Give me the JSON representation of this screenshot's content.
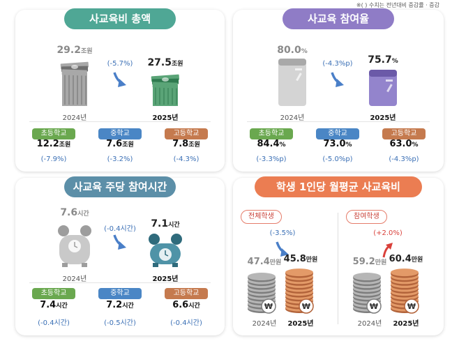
{
  "note": "※(   ) 수치는 전년대비 증감률 · 증감",
  "currency_symbol": "₩",
  "panels": [
    {
      "title": "사교육비 총액",
      "before": {
        "value": "29.2",
        "unit": "조원",
        "year": "2024년"
      },
      "change": "(-5.7%)",
      "after": {
        "value": "27.5",
        "unit": "조원",
        "year": "2025년"
      },
      "levels": [
        {
          "name": "초등학교",
          "value": "12.2",
          "unit": "조원",
          "change": "(-7.9%)"
        },
        {
          "name": "중학교",
          "value": "7.6",
          "unit": "조원",
          "change": "(-3.2%)"
        },
        {
          "name": "고등학교",
          "value": "7.8",
          "unit": "조원",
          "change": "(-4.3%)"
        }
      ]
    },
    {
      "title": "사교육 참여율",
      "before": {
        "value": "80.0",
        "unit": "%",
        "year": "2024년"
      },
      "change": "(-4.3%p)",
      "after": {
        "value": "75.7",
        "unit": "%",
        "year": "2025년"
      },
      "levels": [
        {
          "name": "초등학교",
          "value": "84.4",
          "unit": "%",
          "change": "(-3.3%p)"
        },
        {
          "name": "중학교",
          "value": "73.0",
          "unit": "%",
          "change": "(-5.0%p)"
        },
        {
          "name": "고등학교",
          "value": "63.0",
          "unit": "%",
          "change": "(-4.3%p)"
        }
      ]
    },
    {
      "title": "사교육 주당 참여시간",
      "before": {
        "value": "7.6",
        "unit": "시간",
        "year": "2024년"
      },
      "change": "(-0.4시간)",
      "after": {
        "value": "7.1",
        "unit": "시간",
        "year": "2025년"
      },
      "levels": [
        {
          "name": "초등학교",
          "value": "7.4",
          "unit": "시간",
          "change": "(-0.4시간)"
        },
        {
          "name": "중학교",
          "value": "7.2",
          "unit": "시간",
          "change": "(-0.5시간)"
        },
        {
          "name": "고등학교",
          "value": "6.6",
          "unit": "시간",
          "change": "(-0.4시간)"
        }
      ]
    },
    {
      "title": "학생 1인당 월평균 사교육비",
      "groups": [
        {
          "tag": "전체학생",
          "before": {
            "value": "47.4",
            "unit": "만원",
            "year": "2024년"
          },
          "change": "(-3.5%)",
          "after": {
            "value": "45.8",
            "unit": "만원",
            "year": "2025년"
          }
        },
        {
          "tag": "참여학생",
          "before": {
            "value": "59.2",
            "unit": "만원",
            "year": "2024년"
          },
          "change": "(+2.0%)",
          "after": {
            "value": "60.4",
            "unit": "만원",
            "year": "2025년"
          }
        }
      ]
    }
  ]
}
